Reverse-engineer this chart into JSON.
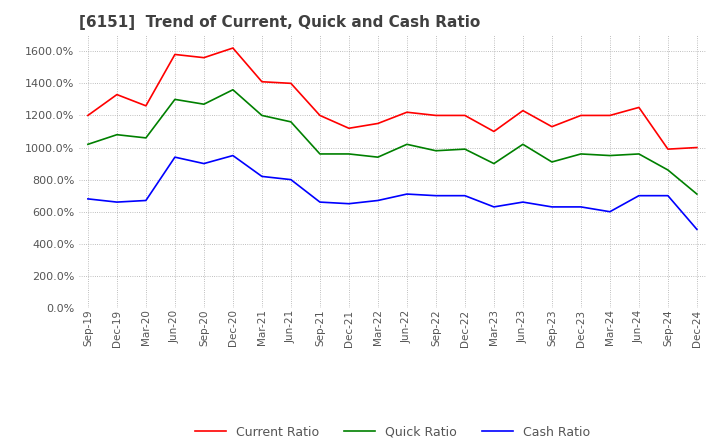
{
  "title": "[6151]  Trend of Current, Quick and Cash Ratio",
  "x_labels": [
    "Sep-19",
    "Dec-19",
    "Mar-20",
    "Jun-20",
    "Sep-20",
    "Dec-20",
    "Mar-21",
    "Jun-21",
    "Sep-21",
    "Dec-21",
    "Mar-22",
    "Jun-22",
    "Sep-22",
    "Dec-22",
    "Mar-23",
    "Jun-23",
    "Sep-23",
    "Dec-23",
    "Mar-24",
    "Jun-24",
    "Sep-24",
    "Dec-24"
  ],
  "current_ratio": [
    1200,
    1330,
    1260,
    1580,
    1560,
    1620,
    1410,
    1400,
    1200,
    1120,
    1150,
    1220,
    1200,
    1200,
    1100,
    1230,
    1130,
    1200,
    1200,
    1250,
    990,
    1000
  ],
  "quick_ratio": [
    1020,
    1080,
    1060,
    1300,
    1270,
    1360,
    1200,
    1160,
    960,
    960,
    940,
    1020,
    980,
    990,
    900,
    1020,
    910,
    960,
    950,
    960,
    860,
    710
  ],
  "cash_ratio": [
    680,
    660,
    670,
    940,
    900,
    950,
    820,
    800,
    660,
    650,
    670,
    710,
    700,
    700,
    630,
    660,
    630,
    630,
    600,
    700,
    700,
    490
  ],
  "current_color": "#ff0000",
  "quick_color": "#008000",
  "cash_color": "#0000ff",
  "ylim": [
    0,
    1700
  ],
  "yticks": [
    0,
    200,
    400,
    600,
    800,
    1000,
    1200,
    1400,
    1600
  ],
  "background_color": "#ffffff",
  "grid_color": "#aaaaaa"
}
